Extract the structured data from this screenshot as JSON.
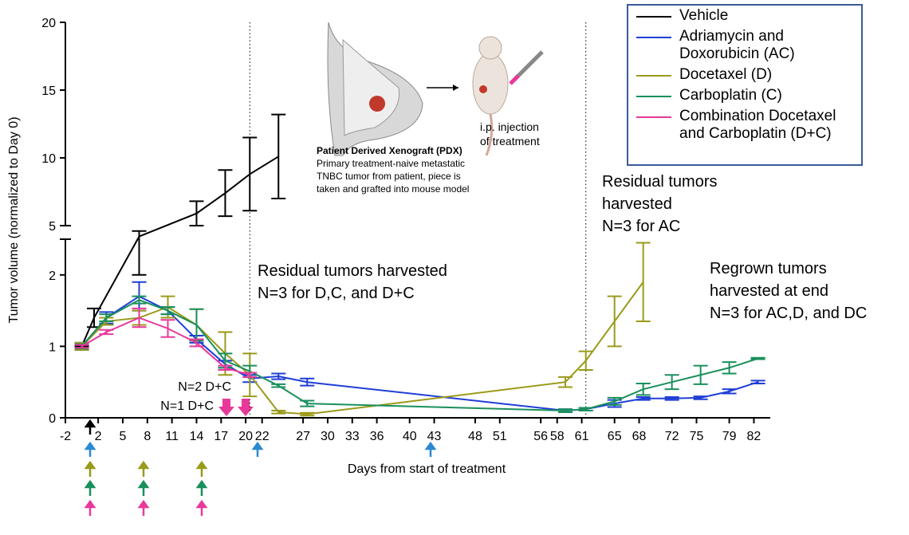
{
  "chart_data": {
    "type": "line",
    "y_title": "Tumor volume (normalized to Day 0)",
    "x_title": "Days from start of treatment",
    "xlim": [
      -2,
      84
    ],
    "xticks": [
      -2,
      2,
      5,
      8,
      11,
      14,
      17,
      20,
      22,
      27,
      30,
      33,
      36,
      40,
      43,
      48,
      51,
      56,
      58,
      61,
      65,
      68,
      72,
      75,
      79,
      82
    ],
    "y_segments": [
      {
        "ylim": [
          0,
          2.5
        ],
        "yticks": [
          0,
          1,
          2
        ]
      },
      {
        "ylim": [
          5,
          20
        ],
        "yticks": [
          5,
          10,
          15,
          20
        ]
      }
    ],
    "vlines": [
      20.5,
      61.5
    ],
    "series": [
      {
        "name": "Vehicle",
        "color": "#000000",
        "x": [
          0,
          1.5,
          7,
          14,
          17.5,
          20.5,
          24
        ],
        "values": [
          1,
          1.4,
          3,
          5.9,
          7.4,
          8.8,
          10.1
        ],
        "errors": [
          0,
          0.13,
          1,
          0.9,
          1.7,
          2.7,
          3.1
        ]
      },
      {
        "name": "Adriamycin and Doxorubicin (AC)",
        "color": "#1f3fd6",
        "x": [
          0,
          3,
          7,
          10.5,
          14,
          17.5,
          20.5,
          24,
          27.5,
          59,
          61.5,
          65,
          68.5,
          72,
          75.5,
          79,
          82.5
        ],
        "values": [
          1,
          1.4,
          1.7,
          1.5,
          1.1,
          0.75,
          0.55,
          0.58,
          0.5,
          0.1,
          0.12,
          0.2,
          0.27,
          0.27,
          0.28,
          0.37,
          0.5
        ],
        "errors": [
          0.05,
          0.08,
          0.2,
          0.05,
          0.05,
          0.05,
          0.05,
          0.04,
          0.05,
          0.02,
          0.02,
          0.05,
          0.02,
          0.02,
          0.02,
          0.03,
          0.02
        ]
      },
      {
        "name": "Docetaxel (D)",
        "color": "#9a9a1a",
        "x": [
          0,
          3,
          7,
          10.5,
          14,
          17.5,
          20.5,
          24,
          27.5,
          59,
          61.5,
          65,
          68.5
        ],
        "values": [
          1,
          1.35,
          1.4,
          1.55,
          1.3,
          0.9,
          0.6,
          0.08,
          0.05,
          0.5,
          0.8,
          1.35,
          1.9
        ],
        "errors": [
          0.05,
          0.05,
          0.1,
          0.15,
          0.22,
          0.3,
          0.3,
          0.02,
          0.02,
          0.07,
          0.13,
          0.35,
          0.55
        ]
      },
      {
        "name": "Carboplatin (C)",
        "color": "#1a8f5c",
        "x": [
          0,
          3,
          7,
          10.5,
          14,
          17.5,
          20.5,
          24,
          27.5,
          59,
          61.5,
          65,
          68.5,
          72,
          75.5,
          79,
          82.5
        ],
        "values": [
          1,
          1.4,
          1.65,
          1.5,
          1.3,
          0.8,
          0.65,
          0.45,
          0.2,
          0.1,
          0.12,
          0.23,
          0.4,
          0.5,
          0.6,
          0.7,
          0.83
        ],
        "errors": [
          0.03,
          0.05,
          0.05,
          0.05,
          0.22,
          0.1,
          0.08,
          0.02,
          0.04,
          0.02,
          0.02,
          0.05,
          0.08,
          0.1,
          0.13,
          0.08,
          0.01
        ]
      },
      {
        "name": "Combination Docetaxel and Carboplatin (D+C)",
        "color": "#e8399a",
        "x": [
          0,
          3,
          7,
          10.5,
          14,
          17.5,
          20.5
        ],
        "values": [
          1,
          1.2,
          1.4,
          1.25,
          1.05,
          0.7,
          0.6
        ],
        "errors": [
          0.02,
          0.03,
          0.13,
          0.12,
          0.05,
          0.03,
          0.03
        ]
      }
    ],
    "annotations": [
      {
        "lines": [
          "Residual tumors harvested",
          "N=3 for D,C, and D+C"
        ]
      },
      {
        "lines": [
          "Residual tumors",
          "harvested",
          "N=3 for AC"
        ]
      },
      {
        "lines": [
          "Regrown tumors",
          "harvested at end",
          "N=3 for AC,D, and DC"
        ]
      }
    ],
    "arrow_labels": [
      "N=2 D+C",
      "N=1 D+C"
    ],
    "inset": {
      "pdx_title": "Patient Derived Xenograft (PDX)",
      "pdx_lines": [
        "Primary treatment-naive metastatic",
        "TNBC tumor from patient, piece is",
        "taken and grafted into mouse model"
      ],
      "injection_lines": [
        "i.p. injection",
        "of treatment"
      ]
    }
  }
}
